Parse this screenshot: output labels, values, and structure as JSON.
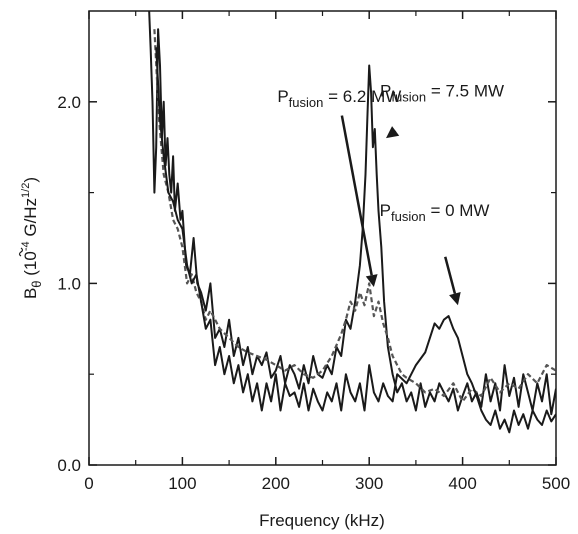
{
  "chart_data": {
    "type": "line",
    "xlabel": "Frequency (kHz)",
    "ylabel_symbol": "B",
    "ylabel_sub": "θ",
    "ylabel_unit_pre": " (10",
    "ylabel_unit_exp1": "-4",
    "ylabel_unit_mid": " G/Hz",
    "ylabel_unit_exp2": "1/2",
    "ylabel_unit_post": ")",
    "xlim": [
      0,
      500
    ],
    "ylim": [
      0,
      2.5
    ],
    "x_ticks": [
      0,
      100,
      200,
      300,
      400,
      500
    ],
    "x_tick_labels": [
      "0",
      "100",
      "200",
      "300",
      "400",
      "500"
    ],
    "y_ticks": [
      0.0,
      1.0,
      2.0
    ],
    "y_tick_labels": [
      "0.0",
      "1.0",
      "2.0"
    ],
    "grid": false,
    "legend": "none",
    "annotations": [
      {
        "base": "P",
        "sub": "fusion",
        "text": " = 6.2 MW",
        "x": 268,
        "y": 2.0,
        "arrow_to": [
          305,
          0.98
        ]
      },
      {
        "base": "P",
        "sub": "fusion",
        "text": " = 7.5 MW",
        "x": 378,
        "y": 2.03,
        "arrow_to": [
          318,
          1.8
        ]
      },
      {
        "base": "P",
        "sub": "fusion",
        "text": " = 0 MW",
        "x": 370,
        "y": 1.37,
        "arrow_to": [
          395,
          0.88
        ]
      }
    ],
    "series": [
      {
        "style": "solid",
        "x": [
          64,
          66,
          68,
          70,
          72,
          74,
          76,
          78,
          80,
          82,
          84,
          86,
          88,
          90,
          92,
          95,
          98,
          100,
          104,
          108,
          112,
          116,
          120,
          125,
          130,
          135,
          140,
          145,
          150,
          155,
          160,
          165,
          170,
          175,
          180,
          185,
          190,
          195,
          200,
          205,
          210,
          215,
          220,
          225,
          230,
          235,
          240,
          245,
          250,
          255,
          260,
          265,
          270,
          275,
          280,
          285,
          290,
          293,
          296,
          298,
          300,
          302,
          304,
          306,
          308,
          310,
          313,
          316,
          320,
          325,
          330,
          335,
          340,
          345,
          350,
          355,
          360,
          365,
          370,
          375,
          380,
          385,
          390,
          395,
          400,
          405,
          410,
          415,
          420,
          425,
          430,
          435,
          440,
          445,
          450,
          455,
          460,
          465,
          470,
          475,
          480,
          485,
          490,
          495,
          500
        ],
        "y": [
          2.55,
          2.3,
          2.0,
          1.5,
          1.75,
          2.4,
          2.2,
          1.8,
          2.0,
          1.65,
          1.8,
          1.6,
          1.5,
          1.7,
          1.4,
          1.55,
          1.35,
          1.4,
          1.1,
          1.05,
          1.25,
          1.0,
          0.95,
          0.85,
          1.0,
          0.7,
          0.75,
          0.65,
          0.8,
          0.6,
          0.7,
          0.55,
          0.65,
          0.5,
          0.6,
          0.55,
          0.62,
          0.48,
          0.52,
          0.6,
          0.45,
          0.55,
          0.5,
          0.42,
          0.55,
          0.45,
          0.6,
          0.5,
          0.48,
          0.55,
          0.5,
          0.65,
          0.6,
          0.8,
          0.75,
          0.9,
          1.1,
          1.3,
          1.6,
          1.9,
          2.2,
          2.05,
          1.75,
          1.85,
          1.6,
          1.4,
          1.2,
          0.9,
          0.65,
          0.5,
          0.4,
          0.45,
          0.35,
          0.4,
          0.3,
          0.45,
          0.32,
          0.4,
          0.35,
          0.45,
          0.4,
          0.35,
          0.42,
          0.3,
          0.38,
          0.45,
          0.35,
          0.4,
          0.32,
          0.5,
          0.35,
          0.45,
          0.3,
          0.55,
          0.38,
          0.48,
          0.32,
          0.5,
          0.4,
          0.3,
          0.45,
          0.35,
          0.5,
          0.28,
          0.42
        ]
      },
      {
        "style": "dashed",
        "x": [
          70,
          75,
          80,
          85,
          90,
          95,
          100,
          105,
          110,
          115,
          120,
          125,
          130,
          140,
          150,
          160,
          170,
          180,
          190,
          200,
          210,
          220,
          230,
          240,
          250,
          260,
          270,
          275,
          280,
          285,
          290,
          295,
          300,
          305,
          310,
          315,
          320,
          325,
          330,
          335,
          340,
          350,
          360,
          370,
          380,
          390,
          400,
          410,
          420,
          430,
          440,
          450,
          460,
          470,
          480,
          490,
          500
        ],
        "y": [
          2.4,
          1.9,
          1.6,
          1.5,
          1.35,
          1.3,
          1.2,
          1.0,
          1.05,
          0.95,
          0.9,
          0.8,
          0.85,
          0.75,
          0.7,
          0.65,
          0.62,
          0.6,
          0.58,
          0.55,
          0.52,
          0.55,
          0.5,
          0.48,
          0.52,
          0.6,
          0.72,
          0.8,
          0.9,
          0.85,
          0.95,
          0.88,
          1.0,
          0.82,
          0.9,
          0.78,
          0.7,
          0.6,
          0.55,
          0.5,
          0.48,
          0.45,
          0.4,
          0.42,
          0.38,
          0.45,
          0.35,
          0.42,
          0.38,
          0.48,
          0.4,
          0.45,
          0.42,
          0.5,
          0.45,
          0.55,
          0.52
        ]
      },
      {
        "style": "solid",
        "x": [
          72,
          76,
          80,
          85,
          90,
          95,
          100,
          105,
          110,
          115,
          120,
          125,
          130,
          135,
          140,
          145,
          150,
          155,
          160,
          165,
          170,
          175,
          180,
          185,
          190,
          195,
          200,
          205,
          210,
          215,
          220,
          225,
          230,
          235,
          240,
          245,
          250,
          255,
          260,
          265,
          270,
          275,
          280,
          285,
          290,
          295,
          300,
          305,
          310,
          315,
          320,
          325,
          330,
          340,
          350,
          360,
          365,
          370,
          375,
          380,
          385,
          390,
          395,
          400,
          405,
          410,
          415,
          420,
          425,
          430,
          435,
          440,
          445,
          450,
          455,
          460,
          465,
          470,
          475,
          480,
          485,
          490,
          495,
          500
        ],
        "y": [
          2.3,
          1.9,
          1.7,
          1.5,
          1.45,
          1.35,
          1.3,
          1.1,
          1.0,
          1.05,
          0.9,
          0.75,
          0.8,
          0.55,
          0.65,
          0.5,
          0.6,
          0.45,
          0.55,
          0.4,
          0.5,
          0.35,
          0.45,
          0.3,
          0.45,
          0.35,
          0.5,
          0.3,
          0.45,
          0.38,
          0.4,
          0.32,
          0.45,
          0.3,
          0.42,
          0.35,
          0.3,
          0.4,
          0.35,
          0.45,
          0.3,
          0.5,
          0.4,
          0.35,
          0.45,
          0.3,
          0.55,
          0.4,
          0.35,
          0.45,
          0.38,
          0.35,
          0.5,
          0.45,
          0.55,
          0.62,
          0.7,
          0.78,
          0.75,
          0.8,
          0.82,
          0.75,
          0.7,
          0.6,
          0.5,
          0.45,
          0.38,
          0.3,
          0.25,
          0.22,
          0.3,
          0.2,
          0.25,
          0.18,
          0.3,
          0.22,
          0.28,
          0.2,
          0.3,
          0.25,
          0.22,
          0.3,
          0.24,
          0.28
        ]
      }
    ]
  }
}
